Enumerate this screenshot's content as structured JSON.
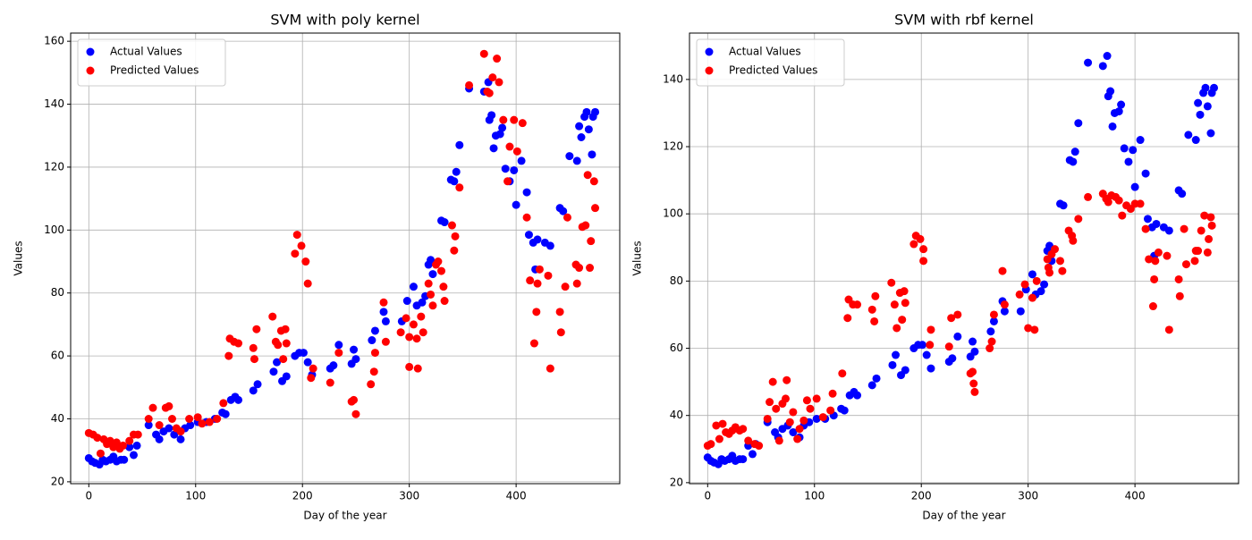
{
  "chart_data": [
    {
      "type": "scatter",
      "title": "SVM with poly kernel",
      "x_label": "Day of the year",
      "y_label": "Values",
      "xlim": [
        -17,
        497
      ],
      "ylim": [
        19.4,
        162.6
      ],
      "xticks": [
        0,
        100,
        200,
        300,
        400
      ],
      "yticks": [
        20,
        40,
        60,
        80,
        100,
        120,
        140,
        160
      ],
      "grid": true,
      "legend": "upper left",
      "series": [
        {
          "name": "Actual Values",
          "color": "#0000ff",
          "x": [
            0,
            3,
            6,
            10,
            13,
            16,
            20,
            23,
            26,
            30,
            33,
            38,
            42,
            45,
            56,
            63,
            66,
            70,
            75,
            80,
            86,
            90,
            95,
            102,
            110,
            118,
            125,
            128,
            133,
            137,
            140,
            154,
            158,
            173,
            176,
            181,
            185,
            193,
            197,
            201,
            205,
            209,
            226,
            229,
            234,
            246,
            248,
            250,
            265,
            268,
            276,
            278,
            293,
            298,
            304,
            307,
            312,
            315,
            318,
            320,
            322,
            330,
            333,
            339,
            342,
            344,
            347,
            356,
            370,
            374,
            375,
            377,
            379,
            381,
            385,
            387,
            390,
            394,
            398,
            400,
            405,
            410,
            412,
            416,
            418,
            420,
            427,
            432,
            441,
            444,
            450,
            457,
            459,
            461,
            464,
            466,
            468,
            471,
            472,
            474
          ],
          "values": [
            27.5,
            26.5,
            26,
            25.5,
            27,
            26.5,
            27,
            28,
            26.5,
            27,
            27,
            31,
            28.5,
            31.5,
            38,
            35,
            33.5,
            36,
            37,
            35,
            33.5,
            37,
            38,
            39,
            39,
            40,
            42,
            41.5,
            46,
            47,
            46,
            49,
            51,
            55,
            58,
            52,
            53.5,
            60,
            61,
            61,
            58,
            54,
            56,
            57,
            63.5,
            57.5,
            62,
            59,
            65,
            68,
            74,
            71,
            71,
            77.5,
            82,
            76,
            77,
            79,
            89,
            90.5,
            86,
            103,
            102.5,
            116,
            115.5,
            118.5,
            127,
            145,
            144,
            147,
            135,
            136.5,
            126,
            130,
            130.5,
            132.5,
            119.5,
            115.5,
            119,
            108,
            122,
            112,
            98.5,
            96,
            87.5,
            97,
            96,
            95,
            107,
            106,
            123.5,
            122,
            133,
            129.5,
            136,
            137.5,
            132,
            124,
            136,
            137.5
          ]
        },
        {
          "name": "Predicted Values",
          "color": "#ff0000",
          "x": [
            0,
            4,
            8,
            11,
            14,
            17,
            20,
            23,
            26,
            29,
            32,
            38,
            42,
            46,
            56,
            60,
            66,
            72,
            75,
            78,
            82,
            86,
            94,
            102,
            106,
            113,
            120,
            126,
            131,
            132,
            136,
            140,
            154,
            155,
            157,
            172,
            175,
            177,
            180,
            184,
            185,
            182,
            193,
            195,
            199,
            203,
            205,
            208,
            210,
            226,
            234,
            246,
            248,
            250,
            264,
            267,
            268,
            276,
            278,
            292,
            297,
            300,
            300,
            304,
            307,
            308,
            311,
            313,
            318,
            320,
            322,
            325,
            327,
            330,
            332,
            333,
            340,
            342,
            343,
            347,
            356,
            370,
            373,
            375,
            378,
            382,
            384,
            388,
            392,
            394,
            398,
            401,
            406,
            410,
            413,
            417,
            419,
            420,
            422,
            430,
            432,
            441,
            442,
            446,
            448,
            456,
            457,
            459,
            462,
            465,
            467,
            469,
            470,
            473,
            474
          ],
          "values": [
            35.5,
            35,
            34,
            29,
            33.5,
            32,
            33,
            31,
            32.5,
            30.5,
            31.5,
            33,
            35,
            35,
            40,
            43.5,
            38,
            43.5,
            44,
            40,
            37,
            36,
            40,
            40.5,
            38.5,
            39,
            40,
            45,
            60,
            65.5,
            64.5,
            64,
            62.5,
            59,
            68.5,
            72.5,
            64.5,
            63.5,
            68,
            68.5,
            64,
            59,
            92.5,
            98.5,
            95,
            90,
            83,
            53,
            56,
            51.5,
            61,
            45.5,
            46,
            41.5,
            51,
            55,
            61,
            77,
            64.5,
            67.5,
            72,
            66,
            56.5,
            70,
            65.5,
            56,
            72.5,
            67.5,
            83,
            79.5,
            76,
            89,
            90,
            87,
            82,
            77.5,
            101.5,
            93.5,
            98,
            113.5,
            146,
            156,
            144,
            143.5,
            148.5,
            154.5,
            147,
            135,
            115.5,
            126.5,
            135,
            125,
            134,
            104,
            84,
            64,
            74,
            83,
            87.5,
            85.5,
            56,
            74,
            67.5,
            82,
            104,
            89,
            83,
            88,
            101,
            101.5,
            117.5,
            88,
            96.5,
            115.5,
            107
          ]
        }
      ]
    },
    {
      "type": "scatter",
      "title": "SVM with rbf kernel",
      "x_label": "Day of the year",
      "y_label": "Values",
      "xlim": [
        -17,
        497
      ],
      "ylim": [
        19.7,
        153.8
      ],
      "xticks": [
        0,
        100,
        200,
        300,
        400
      ],
      "yticks": [
        20,
        40,
        60,
        80,
        100,
        120,
        140
      ],
      "grid": true,
      "legend": "upper left",
      "series": [
        {
          "name": "Actual Values",
          "color": "#0000ff",
          "x": [
            0,
            3,
            6,
            10,
            13,
            16,
            20,
            23,
            26,
            30,
            33,
            38,
            42,
            45,
            56,
            63,
            66,
            70,
            75,
            80,
            86,
            90,
            95,
            102,
            110,
            118,
            125,
            128,
            133,
            137,
            140,
            154,
            158,
            173,
            176,
            181,
            185,
            193,
            197,
            201,
            205,
            209,
            226,
            229,
            234,
            246,
            248,
            250,
            265,
            268,
            276,
            278,
            293,
            298,
            304,
            307,
            312,
            315,
            318,
            320,
            322,
            330,
            333,
            339,
            342,
            344,
            347,
            356,
            370,
            374,
            375,
            377,
            379,
            381,
            385,
            387,
            390,
            394,
            398,
            400,
            405,
            410,
            412,
            416,
            418,
            420,
            427,
            432,
            441,
            444,
            450,
            457,
            459,
            461,
            464,
            466,
            468,
            471,
            472,
            474
          ],
          "values": [
            27.5,
            26.5,
            26,
            25.5,
            27,
            26.5,
            27,
            28,
            26.5,
            27,
            27,
            31,
            28.5,
            31.5,
            38,
            35,
            33.5,
            36,
            37,
            35,
            33.5,
            37,
            38,
            39,
            39,
            40,
            42,
            41.5,
            46,
            47,
            46,
            49,
            51,
            55,
            58,
            52,
            53.5,
            60,
            61,
            61,
            58,
            54,
            56,
            57,
            63.5,
            57.5,
            62,
            59,
            65,
            68,
            74,
            71,
            71,
            77.5,
            82,
            76,
            77,
            79,
            89,
            90.5,
            86,
            103,
            102.5,
            116,
            115.5,
            118.5,
            127,
            145,
            144,
            147,
            135,
            136.5,
            126,
            130,
            130.5,
            132.5,
            119.5,
            115.5,
            119,
            108,
            122,
            112,
            98.5,
            96,
            87.5,
            97,
            96,
            95,
            107,
            106,
            123.5,
            122,
            133,
            129.5,
            136,
            137.5,
            132,
            124,
            136,
            137.5
          ]
        },
        {
          "name": "Predicted Values",
          "color": "#ff0000",
          "x": [
            0,
            3,
            8,
            11,
            14,
            17,
            20,
            23,
            26,
            30,
            33,
            38,
            44,
            48,
            56,
            58,
            61,
            64,
            67,
            70,
            73,
            74,
            77,
            80,
            84,
            86,
            90,
            93,
            96,
            102,
            108,
            115,
            117,
            126,
            131,
            132,
            136,
            140,
            154,
            156,
            157,
            172,
            175,
            177,
            180,
            184,
            185,
            182,
            193,
            195,
            199,
            202,
            202,
            208,
            209,
            226,
            228,
            234,
            246,
            248,
            249,
            250,
            264,
            266,
            268,
            276,
            278,
            292,
            297,
            300,
            304,
            306,
            308,
            318,
            319,
            320,
            322,
            325,
            330,
            332,
            338,
            341,
            342,
            347,
            356,
            370,
            373,
            375,
            378,
            382,
            385,
            388,
            392,
            396,
            400,
            405,
            410,
            413,
            417,
            418,
            419,
            422,
            430,
            432,
            441,
            442,
            446,
            448,
            456,
            457,
            459,
            462,
            465,
            468,
            469,
            471,
            472
          ],
          "values": [
            31,
            31.5,
            37,
            33,
            37.5,
            35,
            34.5,
            35.5,
            36.5,
            35.5,
            36,
            32.5,
            31.5,
            31,
            39,
            44,
            50,
            42,
            32.5,
            43.5,
            45,
            50.5,
            38,
            41,
            33,
            36,
            38.5,
            44.5,
            42,
            45,
            39.5,
            41.5,
            46.5,
            52.5,
            69,
            74.5,
            73,
            73,
            71.5,
            68,
            75.5,
            79.5,
            73,
            66,
            76.5,
            77,
            73.5,
            68.5,
            91,
            93.5,
            92.5,
            89.5,
            86,
            61,
            65.5,
            60.5,
            69,
            70,
            52.5,
            53,
            49.5,
            47,
            60,
            62,
            70,
            83,
            73,
            76,
            79,
            66,
            75,
            65.5,
            80,
            86.5,
            84,
            82.5,
            88,
            89.5,
            86,
            83,
            95,
            93.5,
            92,
            98.5,
            105,
            106,
            104.5,
            103.5,
            105.5,
            105,
            104,
            99.5,
            102.5,
            101.5,
            103,
            103,
            95.5,
            86.5,
            72.5,
            80.5,
            86,
            88.5,
            87.5,
            65.5,
            80.5,
            75.5,
            95.5,
            85,
            86,
            89,
            89,
            95,
            99.5,
            88.5,
            92.5,
            99,
            96.5
          ]
        }
      ]
    }
  ]
}
